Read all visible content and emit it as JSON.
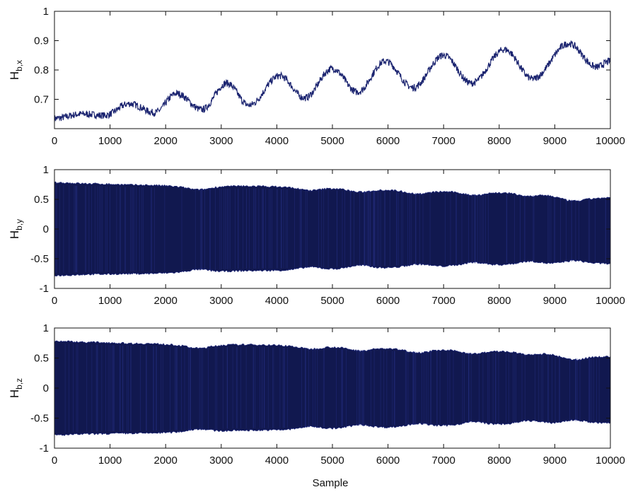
{
  "figure": {
    "xlabel": "Sample"
  },
  "colors": {
    "trace": "#1b2470",
    "trace_dark": "#11184f",
    "axes": "#111111"
  },
  "chart_data": [
    {
      "type": "line",
      "title": "",
      "ylabel_main": "H",
      "ylabel_sub": "b,x",
      "xlim": [
        0,
        10000
      ],
      "ylim": [
        0.6,
        1.0
      ],
      "xticks": [
        0,
        1000,
        2000,
        3000,
        4000,
        5000,
        6000,
        7000,
        8000,
        9000,
        10000
      ],
      "yticks": [
        0.7,
        0.8,
        0.9,
        1
      ],
      "ytick_labels": [
        "0.7",
        "0.8",
        "0.9",
        "1"
      ],
      "grid": false,
      "series": [
        {
          "description_points_x": [
            0,
            500,
            900,
            1350,
            1800,
            2200,
            2650,
            3100,
            3500,
            4050,
            4500,
            5000,
            5450,
            5950,
            6450,
            7000,
            7500,
            8100,
            8600,
            9250,
            9750,
            10000
          ],
          "values": [
            0.635,
            0.65,
            0.645,
            0.685,
            0.655,
            0.72,
            0.665,
            0.755,
            0.68,
            0.78,
            0.705,
            0.805,
            0.725,
            0.83,
            0.74,
            0.85,
            0.755,
            0.87,
            0.77,
            0.89,
            0.81,
            0.83
          ],
          "noise_amplitude": 0.012
        }
      ]
    },
    {
      "type": "line",
      "title": "",
      "ylabel_main": "H",
      "ylabel_sub": "b,y",
      "xlim": [
        0,
        10000
      ],
      "ylim": [
        -1,
        1
      ],
      "xticks": [
        0,
        1000,
        2000,
        3000,
        4000,
        5000,
        6000,
        7000,
        8000,
        9000,
        10000
      ],
      "yticks": [
        -1,
        -0.5,
        0,
        0.5,
        1
      ],
      "ytick_labels": [
        "-1",
        "-0.5",
        "0",
        "0.5",
        "1"
      ],
      "grid": false,
      "series": [
        {
          "envelope_x": [
            0,
            700,
            1500,
            2500,
            3500,
            4500,
            5500,
            6500,
            7500,
            8600,
            9300,
            10000
          ],
          "upper": [
            0.78,
            0.76,
            0.74,
            0.71,
            0.72,
            0.7,
            0.67,
            0.64,
            0.62,
            0.6,
            0.52,
            0.52
          ],
          "lower": [
            -0.78,
            -0.76,
            -0.75,
            -0.73,
            -0.7,
            -0.69,
            -0.66,
            -0.64,
            -0.61,
            -0.59,
            -0.58,
            -0.58
          ],
          "dip_centers": [
            2600,
            4600,
            5500,
            6550,
            7550,
            8550,
            9350
          ],
          "dip_depth": 0.05
        }
      ]
    },
    {
      "type": "line",
      "title": "",
      "ylabel_main": "H",
      "ylabel_sub": "b,z",
      "xlim": [
        0,
        10000
      ],
      "ylim": [
        -1,
        1
      ],
      "xticks": [
        0,
        1000,
        2000,
        3000,
        4000,
        5000,
        6000,
        7000,
        8000,
        9000,
        10000
      ],
      "yticks": [
        -1,
        -0.5,
        0,
        0.5,
        1
      ],
      "ytick_labels": [
        "-1",
        "-0.5",
        "0",
        "0.5",
        "1"
      ],
      "grid": false,
      "series": [
        {
          "envelope_x": [
            0,
            700,
            1500,
            2500,
            3500,
            4500,
            5500,
            6500,
            7500,
            8600,
            9300,
            10000
          ],
          "upper": [
            0.78,
            0.76,
            0.74,
            0.71,
            0.72,
            0.7,
            0.67,
            0.64,
            0.62,
            0.6,
            0.52,
            0.52
          ],
          "lower": [
            -0.78,
            -0.76,
            -0.75,
            -0.73,
            -0.7,
            -0.69,
            -0.66,
            -0.64,
            -0.61,
            -0.59,
            -0.58,
            -0.58
          ],
          "dip_centers": [
            2600,
            4600,
            5500,
            6550,
            7550,
            8550,
            9350
          ],
          "dip_depth": 0.05
        }
      ]
    }
  ]
}
